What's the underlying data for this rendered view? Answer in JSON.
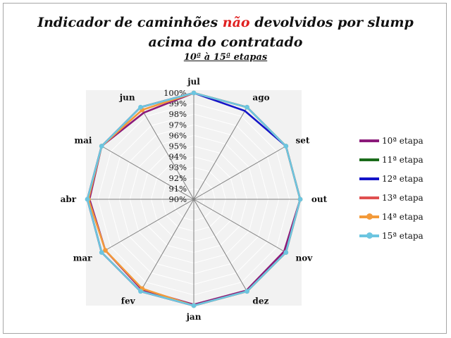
{
  "title": {
    "before": "Indicador de caminhões ",
    "highlight": "não",
    "after": " devolvidos por slump",
    "line2": "acima do contratado",
    "subtitle": "10ª à 15ª etapas"
  },
  "colors": {
    "highlight": "#e02020",
    "plot_background": "#f2f2f2",
    "grid": "#ffffff",
    "axis": "#808080"
  },
  "chart_data": {
    "type": "radar",
    "categories": [
      "jul",
      "ago",
      "set",
      "out",
      "nov",
      "dez",
      "jan",
      "fev",
      "mar",
      "abr",
      "mai",
      "jun"
    ],
    "radial_range": [
      90,
      100
    ],
    "radial_ticks": [
      "90%",
      "91%",
      "92%",
      "93%",
      "94%",
      "95%",
      "96%",
      "97%",
      "98%",
      "99%",
      "100%"
    ],
    "legend_position": "right",
    "series": [
      {
        "name": "10ª etapa",
        "color": "#8b1a7a",
        "marker": false,
        "values": [
          100,
          100,
          100,
          100,
          99.8,
          99.9,
          99.9,
          99.8,
          99.6,
          99.8,
          100,
          99.4
        ]
      },
      {
        "name": "11ª etapa",
        "color": "#1a6b1a",
        "marker": false,
        "values": [
          100,
          100,
          100,
          100,
          100,
          100,
          100,
          100,
          100,
          100,
          100,
          100
        ]
      },
      {
        "name": "12ª etapa",
        "color": "#1414c8",
        "marker": false,
        "values": [
          100,
          99.6,
          100,
          100,
          100,
          100,
          100,
          100,
          100,
          100,
          100,
          100
        ]
      },
      {
        "name": "13ª etapa",
        "color": "#e05050",
        "marker": false,
        "values": [
          100,
          100,
          100,
          100,
          100,
          100,
          100,
          100,
          100,
          100,
          100,
          100
        ]
      },
      {
        "name": "14ª etapa",
        "color": "#f39a3a",
        "marker": true,
        "values": [
          100,
          100,
          100,
          100,
          100,
          100,
          100,
          99.7,
          99.6,
          99.9,
          100,
          99.7
        ]
      },
      {
        "name": "15ª etapa",
        "color": "#6cc5e0",
        "marker": true,
        "values": [
          100,
          100,
          100,
          100,
          100,
          100,
          100,
          100,
          100,
          100,
          100,
          100
        ]
      }
    ]
  }
}
